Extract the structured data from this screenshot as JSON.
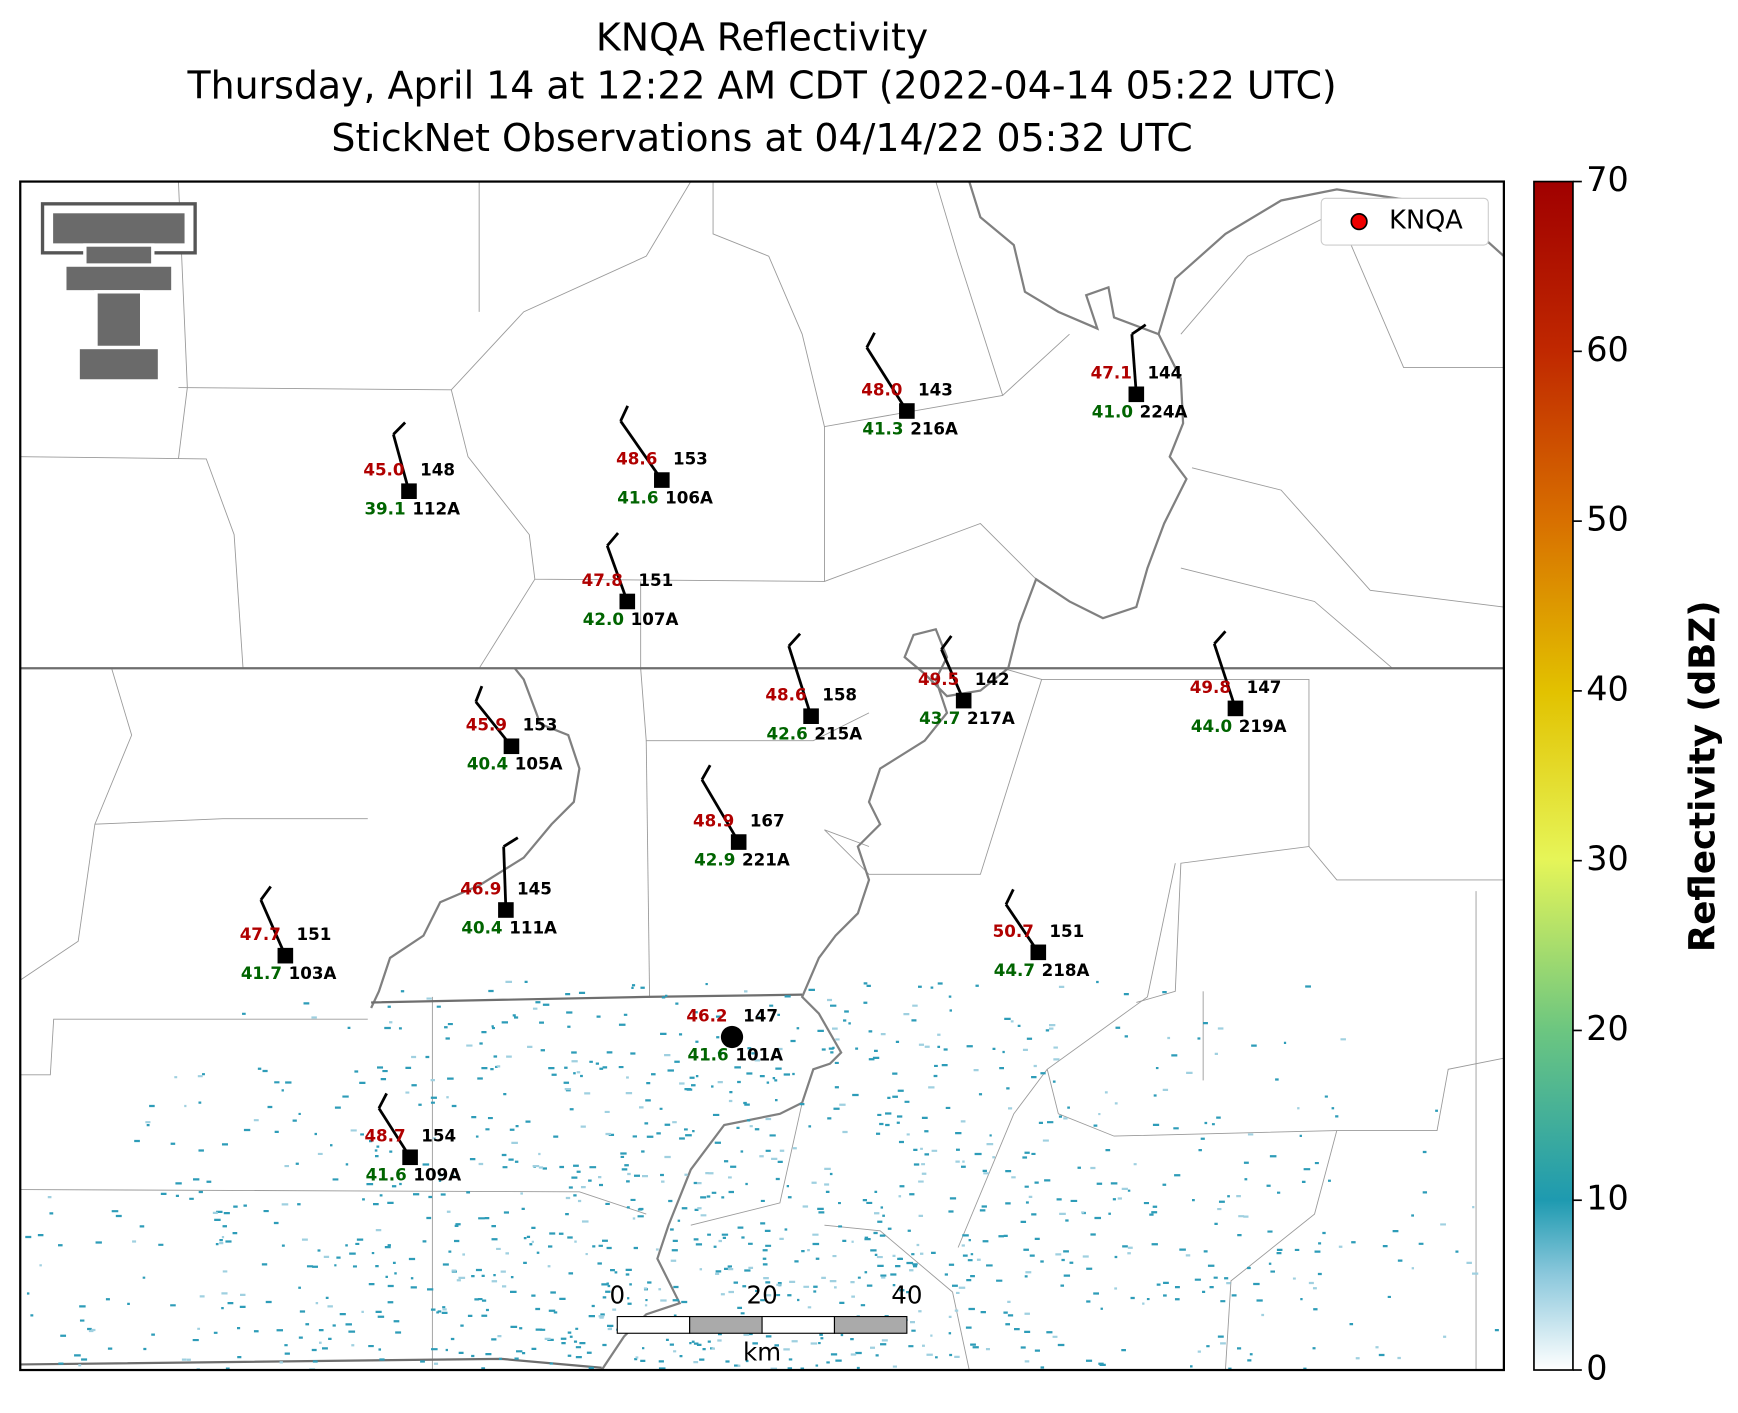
{
  "header": {
    "title": "KNQA Reflectivity",
    "subtitle": "Thursday, April 14 at 12:22 AM CDT (2022-04-14 05:22 UTC)",
    "observation_time": "StickNet Observations at 04/14/22 05:32 UTC"
  },
  "stations": [
    {
      "id": "112A",
      "temperature": "45.0",
      "dewpoint": "39.1",
      "pressure": "148"
    },
    {
      "id": "106A",
      "temperature": "48.6",
      "dewpoint": "41.6",
      "pressure": "153"
    },
    {
      "id": "216A",
      "temperature": "48.0",
      "dewpoint": "41.3",
      "pressure": "143"
    },
    {
      "id": "224A",
      "temperature": "47.1",
      "dewpoint": "41.0",
      "pressure": "144"
    },
    {
      "id": "107A",
      "temperature": "47.8",
      "dewpoint": "42.0",
      "pressure": "151"
    },
    {
      "id": "215A",
      "temperature": "48.6",
      "dewpoint": "42.6",
      "pressure": "158"
    },
    {
      "id": "217A",
      "temperature": "49.5",
      "dewpoint": "43.7",
      "pressure": "142"
    },
    {
      "id": "219A",
      "temperature": "49.8",
      "dewpoint": "44.0",
      "pressure": "147"
    },
    {
      "id": "105A",
      "temperature": "45.9",
      "dewpoint": "40.4",
      "pressure": "153"
    },
    {
      "id": "221A",
      "temperature": "48.9",
      "dewpoint": "42.9",
      "pressure": "167"
    },
    {
      "id": "111A",
      "temperature": "46.9",
      "dewpoint": "40.4",
      "pressure": "145"
    },
    {
      "id": "103A",
      "temperature": "47.7",
      "dewpoint": "41.7",
      "pressure": "151"
    },
    {
      "id": "218A",
      "temperature": "50.7",
      "dewpoint": "44.7",
      "pressure": "151"
    },
    {
      "id": "101A",
      "temperature": "46.2",
      "dewpoint": "41.6",
      "pressure": "147"
    },
    {
      "id": "109A",
      "temperature": "48.7",
      "dewpoint": "41.6",
      "pressure": "154"
    }
  ],
  "legend": {
    "label": "KNQA"
  },
  "colorbar": {
    "label": "Reflectivity (dBZ)",
    "ticks": [
      0,
      10,
      20,
      30,
      40,
      50,
      60,
      70
    ]
  },
  "scale_bar": {
    "ticks": [
      0,
      20,
      40
    ],
    "unit": "km"
  }
}
